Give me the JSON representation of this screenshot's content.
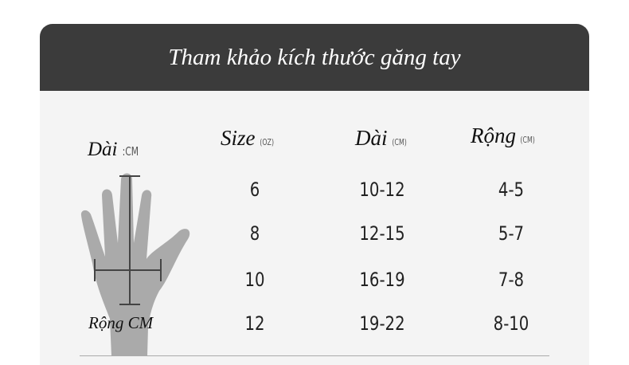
{
  "title": "Tham khảo kích thước găng tay",
  "diagram": {
    "length_label": "Dài",
    "length_unit": ":CM",
    "width_label": "Rộng CM",
    "hand_color": "#aaaaaa",
    "line_color": "#444444"
  },
  "table": {
    "headers": [
      {
        "label": "Size",
        "unit": "(OZ)"
      },
      {
        "label": "Dài",
        "unit": "(CM)"
      },
      {
        "label": "Rộng",
        "unit": "(CM)"
      }
    ],
    "rows": [
      [
        "6",
        "10-12",
        "4-5"
      ],
      [
        "8",
        "12-15",
        "5-7"
      ],
      [
        "10",
        "16-19",
        "7-8"
      ],
      [
        "12",
        "19-22",
        "8-10"
      ]
    ]
  },
  "colors": {
    "header_bg": "#3b3b3b",
    "body_bg": "#f4f4f4"
  }
}
